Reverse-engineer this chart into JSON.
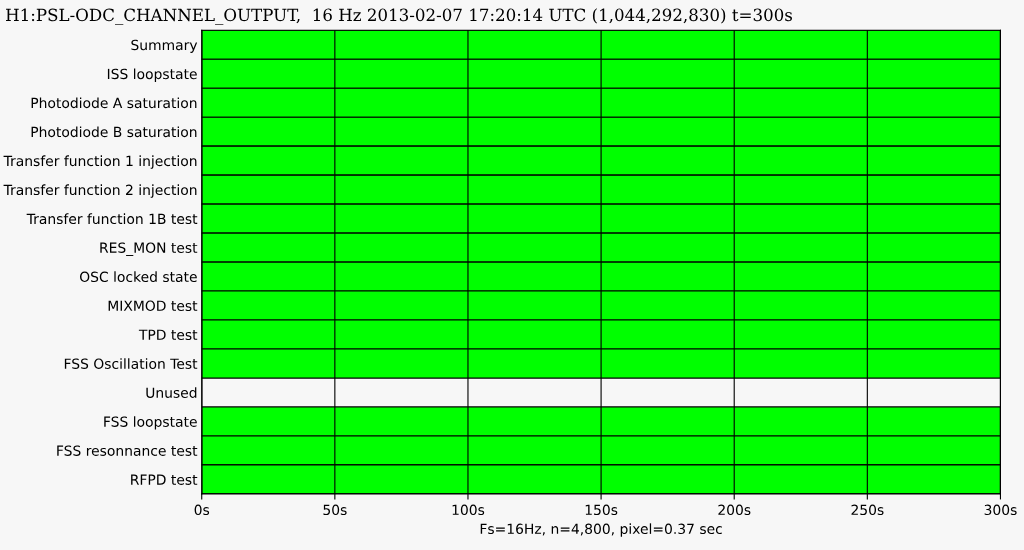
{
  "chart_data": {
    "type": "bar",
    "orientation": "horizontal",
    "title": "H1:PSL-ODC_CHANNEL_OUTPUT,  16 Hz 2013-02-07 17:20:14 UTC (1,044,292,830) t=300s",
    "xlabel": "Fs=16Hz, n=4,800, pixel=0.37 sec",
    "categories": [
      "Summary",
      "ISS loopstate",
      "Photodiode A saturation",
      "Photodiode B saturation",
      "Transfer function 1 injection",
      "Transfer function 2 injection",
      "Transfer function 1B test",
      "RES_MON test",
      "OSC locked state",
      "MIXMOD test",
      "TPD test",
      "FSS Oscillation Test",
      "Unused",
      "FSS loopstate",
      "FSS resonnance test",
      "RFPD test"
    ],
    "values": [
      300,
      300,
      300,
      300,
      300,
      300,
      300,
      300,
      300,
      300,
      300,
      300,
      null,
      300,
      300,
      300
    ],
    "color": "#00ff00",
    "xlim": [
      0,
      300
    ],
    "xticks": [
      {
        "value": 0,
        "label": "0s"
      },
      {
        "value": 50,
        "label": "50s"
      },
      {
        "value": 100,
        "label": "100s"
      },
      {
        "value": 150,
        "label": "150s"
      },
      {
        "value": 200,
        "label": "200s"
      },
      {
        "value": 250,
        "label": "250s"
      },
      {
        "value": 300,
        "label": "300s"
      }
    ],
    "grid": "x"
  }
}
